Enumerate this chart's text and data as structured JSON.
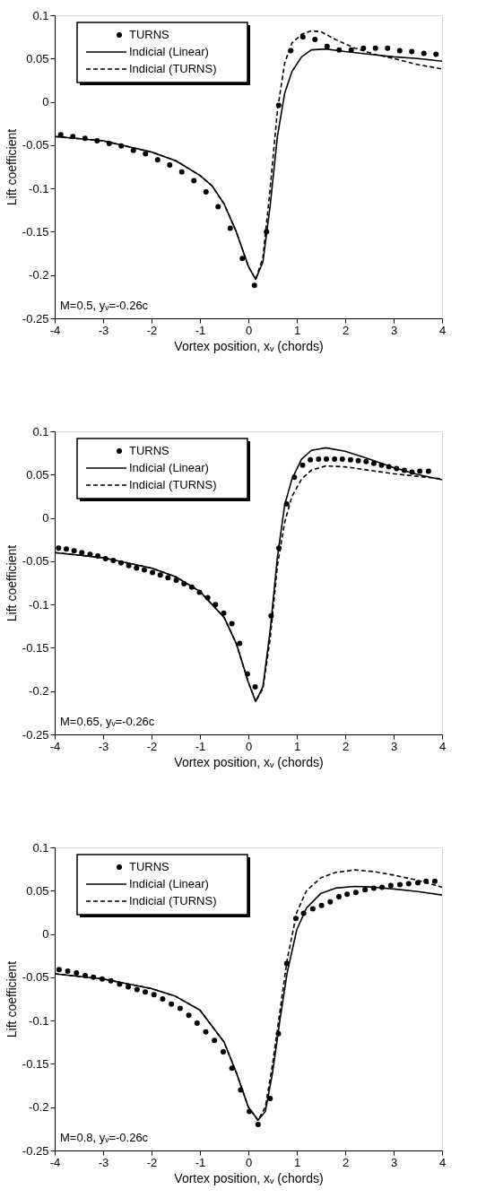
{
  "chart_data": [
    {
      "type": "scatter",
      "xlabel": "Vortex position, xᵥ (chords)",
      "ylabel": "Lift coefficient",
      "xlim": [
        -4,
        4
      ],
      "ylim": [
        -0.25,
        0.1
      ],
      "xticks": [
        -4,
        -3,
        -2,
        -1,
        0,
        1,
        2,
        3,
        4
      ],
      "yticks": [
        -0.25,
        -0.2,
        -0.15,
        -0.1,
        -0.05,
        0,
        0.05,
        0.1
      ],
      "grid": false,
      "legend": "top left",
      "annotations": [
        "M=0.5, yᵥ=-0.26c"
      ],
      "series": [
        {
          "name": "TURNS",
          "type": "scatter",
          "marker": "circle",
          "color": "#000000",
          "x": [
            -3.875,
            -3.625,
            -3.375,
            -3.125,
            -2.875,
            -2.625,
            -2.375,
            -2.125,
            -1.875,
            -1.625,
            -1.375,
            -1.125,
            -0.875,
            -0.625,
            -0.375,
            -0.125,
            0.125,
            0.375,
            0.625,
            0.875,
            1.125,
            1.375,
            1.625,
            1.875,
            2.125,
            2.375,
            2.625,
            2.875,
            3.125,
            3.375,
            3.625,
            3.875
          ],
          "values": [
            -0.038,
            -0.04,
            -0.042,
            -0.045,
            -0.048,
            -0.051,
            -0.056,
            -0.06,
            -0.067,
            -0.073,
            -0.081,
            -0.091,
            -0.104,
            -0.121,
            -0.146,
            -0.181,
            -0.212,
            -0.15,
            -0.004,
            0.059,
            0.075,
            0.072,
            0.064,
            0.06,
            0.06,
            0.062,
            0.062,
            0.062,
            0.059,
            0.058,
            0.056,
            0.055
          ]
        },
        {
          "name": "Indicial (Linear)",
          "type": "line",
          "line_style": "solid",
          "color": "#000000",
          "x": [
            -4,
            -3,
            -2,
            -1.5,
            -1,
            -0.75,
            -0.5,
            -0.25,
            0,
            0.15,
            0.3,
            0.45,
            0.6,
            0.75,
            0.9,
            1.1,
            1.3,
            1.6,
            2,
            2.5,
            3,
            3.5,
            4
          ],
          "values": [
            -0.04,
            -0.045,
            -0.058,
            -0.068,
            -0.085,
            -0.097,
            -0.118,
            -0.15,
            -0.19,
            -0.205,
            -0.185,
            -0.12,
            -0.04,
            0.01,
            0.035,
            0.052,
            0.06,
            0.061,
            0.058,
            0.055,
            0.052,
            0.05,
            0.047
          ]
        },
        {
          "name": "Indicial (TURNS)",
          "type": "line",
          "line_style": "dashed",
          "color": "#000000",
          "x": [
            -4,
            -3,
            -2,
            -1.5,
            -1,
            -0.75,
            -0.5,
            -0.25,
            0,
            0.15,
            0.3,
            0.45,
            0.6,
            0.75,
            0.9,
            1.1,
            1.3,
            1.5,
            1.8,
            2.2,
            2.6,
            3,
            3.5,
            4
          ],
          "values": [
            -0.04,
            -0.045,
            -0.058,
            -0.068,
            -0.085,
            -0.097,
            -0.118,
            -0.15,
            -0.19,
            -0.205,
            -0.18,
            -0.1,
            -0.01,
            0.045,
            0.068,
            0.078,
            0.082,
            0.081,
            0.072,
            0.062,
            0.055,
            0.05,
            0.043,
            0.038
          ]
        }
      ]
    },
    {
      "type": "scatter",
      "xlabel": "Vortex position, xᵥ (chords)",
      "ylabel": "Lift coefficient",
      "xlim": [
        -4,
        4
      ],
      "ylim": [
        -0.25,
        0.1
      ],
      "xticks": [
        -4,
        -3,
        -2,
        -1,
        0,
        1,
        2,
        3,
        4
      ],
      "yticks": [
        -0.25,
        -0.2,
        -0.15,
        -0.1,
        -0.05,
        0,
        0.05,
        0.1
      ],
      "grid": false,
      "legend": "top left",
      "annotations": [
        "M=0.65, yᵥ=-0.26c"
      ],
      "series": [
        {
          "name": "TURNS",
          "type": "scatter",
          "marker": "circle",
          "color": "#000000",
          "x": [
            -3.92,
            -3.76,
            -3.6,
            -3.44,
            -3.27,
            -3.11,
            -2.95,
            -2.79,
            -2.63,
            -2.47,
            -2.31,
            -2.15,
            -1.98,
            -1.82,
            -1.66,
            -1.49,
            -1.33,
            -1.17,
            -1.01,
            -0.84,
            -0.68,
            -0.51,
            -0.34,
            -0.18,
            -0.02,
            0.14,
            0.47,
            0.63,
            0.79,
            0.95,
            1.12,
            1.28,
            1.45,
            1.61,
            1.78,
            1.94,
            2.11,
            2.27,
            2.43,
            2.59,
            2.75,
            2.9,
            3.06,
            3.22,
            3.38,
            3.54,
            3.72
          ],
          "values": [
            -0.035,
            -0.036,
            -0.038,
            -0.04,
            -0.042,
            -0.044,
            -0.047,
            -0.049,
            -0.052,
            -0.055,
            -0.058,
            -0.06,
            -0.063,
            -0.066,
            -0.069,
            -0.072,
            -0.076,
            -0.08,
            -0.086,
            -0.092,
            -0.1,
            -0.11,
            -0.122,
            -0.145,
            -0.18,
            -0.195,
            -0.113,
            -0.035,
            0.016,
            0.047,
            0.061,
            0.067,
            0.068,
            0.068,
            0.068,
            0.068,
            0.067,
            0.066,
            0.065,
            0.063,
            0.061,
            0.059,
            0.057,
            0.055,
            0.053,
            0.054,
            0.054
          ]
        },
        {
          "name": "Indicial (Linear)",
          "type": "line",
          "line_style": "solid",
          "color": "#000000",
          "x": [
            -4,
            -3,
            -2,
            -1.5,
            -1,
            -0.5,
            -0.25,
            0,
            0.15,
            0.3,
            0.45,
            0.6,
            0.75,
            0.9,
            1.1,
            1.3,
            1.6,
            2,
            2.5,
            3,
            3.5,
            4
          ],
          "values": [
            -0.04,
            -0.046,
            -0.058,
            -0.068,
            -0.085,
            -0.115,
            -0.145,
            -0.19,
            -0.212,
            -0.195,
            -0.13,
            -0.045,
            0.015,
            0.045,
            0.068,
            0.078,
            0.081,
            0.077,
            0.068,
            0.058,
            0.05,
            0.044
          ]
        },
        {
          "name": "Indicial (TURNS)",
          "type": "line",
          "line_style": "dashed",
          "color": "#000000",
          "x": [
            -4,
            -3,
            -2,
            -1.5,
            -1,
            -0.5,
            -0.25,
            0,
            0.15,
            0.3,
            0.45,
            0.6,
            0.75,
            0.9,
            1.1,
            1.3,
            1.6,
            2,
            2.5,
            3,
            3.5,
            4
          ],
          "values": [
            -0.04,
            -0.046,
            -0.058,
            -0.068,
            -0.085,
            -0.115,
            -0.145,
            -0.19,
            -0.212,
            -0.197,
            -0.14,
            -0.055,
            -0.005,
            0.025,
            0.045,
            0.055,
            0.06,
            0.059,
            0.055,
            0.051,
            0.048,
            0.045
          ]
        }
      ]
    },
    {
      "type": "scatter",
      "xlabel": "Vortex position, xᵥ (chords)",
      "ylabel": "Lift coefficient",
      "xlim": [
        -4,
        4
      ],
      "ylim": [
        -0.25,
        0.1
      ],
      "xticks": [
        -4,
        -3,
        -2,
        -1,
        0,
        1,
        2,
        3,
        4
      ],
      "yticks": [
        -0.25,
        -0.2,
        -0.15,
        -0.1,
        -0.05,
        0,
        0.05,
        0.1
      ],
      "grid": false,
      "legend": "top left",
      "annotations": [
        "M=0.8, yᵥ=-0.26c"
      ],
      "series": [
        {
          "name": "TURNS",
          "type": "scatter",
          "marker": "circle",
          "color": "#000000",
          "x": [
            -3.91,
            -3.73,
            -3.55,
            -3.37,
            -3.2,
            -3.02,
            -2.84,
            -2.66,
            -2.48,
            -2.3,
            -2.13,
            -1.95,
            -1.77,
            -1.59,
            -1.41,
            -1.23,
            -1.06,
            -0.88,
            -0.7,
            -0.52,
            -0.34,
            -0.16,
            0.02,
            0.2,
            0.45,
            0.62,
            0.79,
            0.98,
            1.14,
            1.33,
            1.51,
            1.69,
            1.87,
            2.04,
            2.22,
            2.41,
            2.59,
            2.76,
            2.94,
            3.13,
            3.31,
            3.5,
            3.67,
            3.85
          ],
          "values": [
            -0.041,
            -0.043,
            -0.045,
            -0.048,
            -0.05,
            -0.052,
            -0.054,
            -0.058,
            -0.061,
            -0.064,
            -0.067,
            -0.07,
            -0.075,
            -0.081,
            -0.086,
            -0.094,
            -0.103,
            -0.113,
            -0.123,
            -0.136,
            -0.155,
            -0.18,
            -0.205,
            -0.22,
            -0.19,
            -0.115,
            -0.034,
            0.018,
            0.024,
            0.029,
            0.033,
            0.037,
            0.043,
            0.046,
            0.048,
            0.051,
            0.053,
            0.054,
            0.056,
            0.057,
            0.058,
            0.059,
            0.061,
            0.061
          ]
        },
        {
          "name": "Indicial (Linear)",
          "type": "line",
          "line_style": "solid",
          "color": "#000000",
          "x": [
            -4,
            -3,
            -2,
            -1.5,
            -1,
            -0.5,
            -0.25,
            0,
            0.2,
            0.35,
            0.5,
            0.65,
            0.8,
            1,
            1.2,
            1.5,
            1.8,
            2.2,
            2.6,
            3,
            3.5,
            4
          ],
          "values": [
            -0.046,
            -0.052,
            -0.063,
            -0.072,
            -0.088,
            -0.125,
            -0.16,
            -0.2,
            -0.215,
            -0.205,
            -0.16,
            -0.1,
            -0.045,
            0.005,
            0.03,
            0.047,
            0.053,
            0.055,
            0.054,
            0.052,
            0.049,
            0.045
          ]
        },
        {
          "name": "Indicial (TURNS)",
          "type": "line",
          "line_style": "dashed",
          "color": "#000000",
          "x": [
            -4,
            -3,
            -2,
            -1.5,
            -1,
            -0.5,
            -0.25,
            0,
            0.2,
            0.35,
            0.5,
            0.65,
            0.8,
            1,
            1.2,
            1.5,
            1.8,
            2.2,
            2.6,
            3,
            3.5,
            4
          ],
          "values": [
            -0.046,
            -0.052,
            -0.063,
            -0.072,
            -0.088,
            -0.125,
            -0.16,
            -0.2,
            -0.215,
            -0.2,
            -0.15,
            -0.09,
            -0.03,
            0.025,
            0.05,
            0.065,
            0.071,
            0.074,
            0.072,
            0.068,
            0.062,
            0.054
          ]
        }
      ]
    }
  ]
}
